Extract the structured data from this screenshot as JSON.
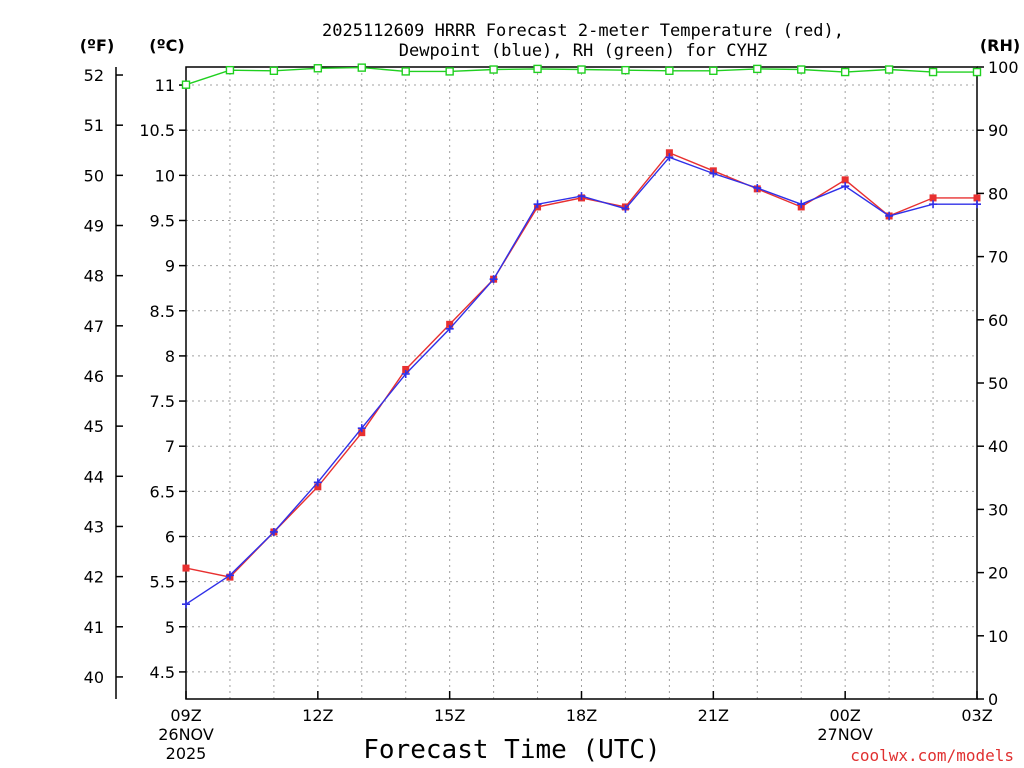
{
  "chart_data": {
    "type": "line",
    "title": [
      "2025112609 HRRR Forecast 2-meter Temperature (red),",
      "Dewpoint (blue), RH (green) for CYHZ"
    ],
    "xlabel": "Forecast Time (UTC)",
    "left_unit_f": "(ºF)",
    "left_unit_c": "(ºC)",
    "right_unit": "(RH)",
    "x_hours": [
      0,
      1,
      2,
      3,
      4,
      5,
      6,
      7,
      8,
      9,
      10,
      11,
      12,
      13,
      14,
      15,
      16,
      17,
      18
    ],
    "x_ticks": [
      {
        "hour": 0,
        "label": "09Z",
        "sub1": "26NOV",
        "sub2": "2025"
      },
      {
        "hour": 3,
        "label": "12Z",
        "sub1": "",
        "sub2": ""
      },
      {
        "hour": 6,
        "label": "15Z",
        "sub1": "",
        "sub2": ""
      },
      {
        "hour": 9,
        "label": "18Z",
        "sub1": "",
        "sub2": ""
      },
      {
        "hour": 12,
        "label": "21Z",
        "sub1": "",
        "sub2": ""
      },
      {
        "hour": 15,
        "label": "00Z",
        "sub1": "27NOV",
        "sub2": ""
      },
      {
        "hour": 18,
        "label": "03Z",
        "sub1": "",
        "sub2": ""
      }
    ],
    "xlim": [
      0,
      18
    ],
    "ylim_c": [
      4.2,
      11.2
    ],
    "ylim_rh": [
      0,
      100
    ],
    "c_ticks": [
      "4.5",
      "5",
      "5.5",
      "6",
      "6.5",
      "7",
      "7.5",
      "8",
      "8.5",
      "9",
      "9.5",
      "10",
      "10.5",
      "11"
    ],
    "f_ticks": [
      "40",
      "41",
      "42",
      "43",
      "44",
      "45",
      "46",
      "47",
      "48",
      "49",
      "50",
      "51",
      "52"
    ],
    "rh_ticks": [
      "0",
      "10",
      "20",
      "30",
      "40",
      "50",
      "60",
      "70",
      "80",
      "90",
      "100"
    ],
    "grid": true,
    "series": [
      {
        "name": "Temperature",
        "color": "#e83030",
        "marker": "square",
        "values": [
          5.65,
          5.55,
          6.05,
          6.55,
          7.15,
          7.85,
          8.35,
          8.85,
          9.65,
          9.75,
          9.65,
          10.25,
          10.05,
          9.85,
          9.65,
          9.95,
          9.55,
          9.75,
          9.75
        ]
      },
      {
        "name": "Dewpoint",
        "color": "#3030e8",
        "marker": "plus",
        "values": [
          5.25,
          5.57,
          6.05,
          6.6,
          7.2,
          7.8,
          8.3,
          8.85,
          9.68,
          9.77,
          9.63,
          10.2,
          10.02,
          9.86,
          9.68,
          9.88,
          9.55,
          9.68,
          9.68
        ]
      },
      {
        "name": "RH",
        "color": "#20d020",
        "marker": "open-square",
        "axis": "rh",
        "values": [
          97.2,
          99.5,
          99.4,
          99.8,
          99.9,
          99.3,
          99.3,
          99.6,
          99.7,
          99.6,
          99.5,
          99.4,
          99.4,
          99.7,
          99.6,
          99.2,
          99.6,
          99.2,
          99.2
        ]
      }
    ],
    "watermark": "coolwx.com/models"
  }
}
